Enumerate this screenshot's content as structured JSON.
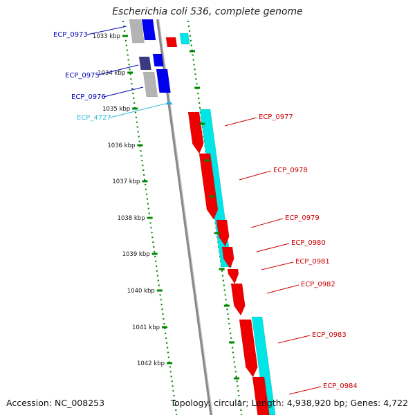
{
  "title": "Escherichia coli 536, complete genome",
  "footer": {
    "accession": "Accession: NC_008253",
    "summary": "Topology: circular; Length: 4,938,920 bp; Genes: 4,722"
  },
  "colors": {
    "forward_gene": "#ee0000",
    "forward_cds": "#00e5e5",
    "reverse_gene": "#0000ee",
    "reverse_cds_grey": "#b4b4b4",
    "reverse_dark": "#3a3a80",
    "tick": "#008800",
    "backbone": "#8a8a8a",
    "label_blue": "#0000bb",
    "label_red": "#cc0000",
    "label_cyan": "#33bbdd"
  },
  "ticks": [
    {
      "label": "1033 kbp"
    },
    {
      "label": "1034 kbp"
    },
    {
      "label": "1035 kbp"
    },
    {
      "label": "1036 kbp"
    },
    {
      "label": "1037 kbp"
    },
    {
      "label": "1038 kbp"
    },
    {
      "label": "1039 kbp"
    },
    {
      "label": "1040 kbp"
    },
    {
      "label": "1041 kbp"
    },
    {
      "label": "1042 kbp"
    }
  ],
  "genes_left": [
    {
      "label": "ECP_0973",
      "color": "blue"
    },
    {
      "label": "ECP_0975",
      "color": "blue"
    },
    {
      "label": "ECP_0976",
      "color": "blue"
    },
    {
      "label": "ECP_4727",
      "color": "cyan"
    }
  ],
  "genes_right": [
    {
      "label": "ECP_0977"
    },
    {
      "label": "ECP_0978"
    },
    {
      "label": "ECP_0979"
    },
    {
      "label": "ECP_0980"
    },
    {
      "label": "ECP_0981"
    },
    {
      "label": "ECP_0982"
    },
    {
      "label": "ECP_0983"
    },
    {
      "label": "ECP_0984"
    }
  ]
}
